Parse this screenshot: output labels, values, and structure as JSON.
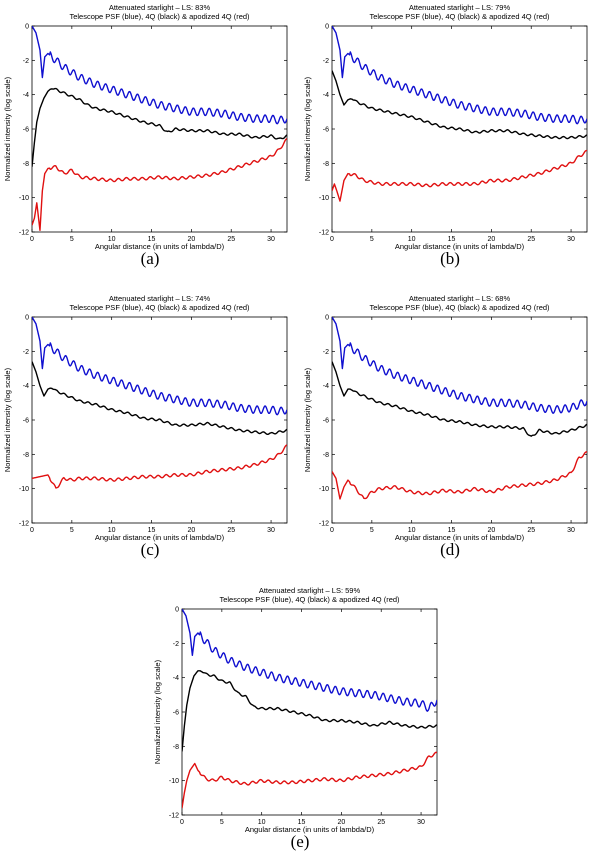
{
  "figure": {
    "title_line2": "Telescope PSF (blue), 4Q (black) & apodized 4Q (red)",
    "xlabel": "Angular distance (in units of lambda/D)",
    "ylabel": "Normalized intensity (log scale)",
    "xticks": [
      "0",
      "5",
      "10",
      "15",
      "20",
      "25",
      "30"
    ],
    "yticks": [
      "0",
      "-2",
      "-4",
      "-6",
      "-8",
      "-10",
      "-12"
    ],
    "colors": {
      "telescope": "#1010d0",
      "fourq": "#000000",
      "apodized": "#e01010"
    }
  },
  "chart_data": [
    {
      "type": "line",
      "title": "Attenuated starlight – LS: 83%",
      "caption": "(a)",
      "xlabel": "Angular distance (in units of lambda/D)",
      "ylabel": "Normalized intensity (log scale)",
      "xlim": [
        0,
        32
      ],
      "ylim": [
        -12,
        0
      ],
      "series": [
        {
          "name": "Telescope PSF (blue)",
          "color": "#1010d0",
          "x": [
            0,
            0.5,
            1,
            1.3,
            1.6,
            2,
            3,
            4,
            5,
            6,
            8,
            10,
            12,
            14,
            16,
            18,
            20,
            22,
            24,
            26,
            28,
            30,
            31,
            32
          ],
          "y": [
            0,
            -0.4,
            -1.4,
            -3,
            -1.8,
            -1.6,
            -2.0,
            -2.4,
            -2.7,
            -3.0,
            -3.4,
            -3.7,
            -4.0,
            -4.3,
            -4.6,
            -4.8,
            -5.0,
            -5.0,
            -5.1,
            -5.3,
            -5.4,
            -5.4,
            -5.5,
            -5.4
          ]
        },
        {
          "name": "4Q (black)",
          "color": "#000000",
          "x": [
            0,
            0.3,
            0.6,
            1,
            1.5,
            2,
            2.5,
            3,
            4,
            5,
            6,
            7,
            8,
            9,
            10,
            12,
            14,
            16,
            17,
            18,
            20,
            22,
            24,
            26,
            28,
            30,
            31,
            32
          ],
          "y": [
            -8.2,
            -6.8,
            -5.6,
            -4.8,
            -4.2,
            -3.8,
            -3.6,
            -3.7,
            -3.9,
            -4.1,
            -4.3,
            -4.6,
            -4.8,
            -4.9,
            -5.0,
            -5.3,
            -5.6,
            -5.8,
            -6.2,
            -6.0,
            -6.1,
            -6.1,
            -6.3,
            -6.3,
            -6.5,
            -6.4,
            -6.6,
            -6.4
          ]
        },
        {
          "name": "Apodized 4Q (red)",
          "color": "#e01010",
          "x": [
            0,
            0.3,
            0.6,
            1,
            1.3,
            1.6,
            2,
            3,
            4,
            5,
            6,
            8,
            10,
            12,
            14,
            16,
            18,
            20,
            22,
            24,
            26,
            28,
            30,
            31,
            32
          ],
          "y": [
            -11.6,
            -11.2,
            -10.3,
            -11.9,
            -9.6,
            -8.6,
            -8.3,
            -8.2,
            -8.6,
            -8.4,
            -8.8,
            -8.9,
            -9.0,
            -8.9,
            -8.9,
            -8.8,
            -8.9,
            -8.8,
            -8.7,
            -8.5,
            -8.2,
            -7.9,
            -7.6,
            -7.2,
            -6.6
          ]
        }
      ]
    },
    {
      "type": "line",
      "title": "Attenuated starlight – LS: 79%",
      "caption": "(b)",
      "xlabel": "Angular distance (in units of lambda/D)",
      "ylabel": "Normalized intensity (log scale)",
      "xlim": [
        0,
        32
      ],
      "ylim": [
        -12,
        0
      ],
      "series": [
        {
          "name": "Telescope PSF (blue)",
          "color": "#1010d0",
          "x": [
            0,
            0.5,
            1,
            1.3,
            1.6,
            2,
            3,
            4,
            5,
            6,
            8,
            10,
            12,
            14,
            16,
            18,
            20,
            22,
            24,
            26,
            28,
            30,
            31,
            32
          ],
          "y": [
            0,
            -0.4,
            -1.4,
            -3,
            -1.8,
            -1.6,
            -2.0,
            -2.4,
            -2.7,
            -3.0,
            -3.4,
            -3.7,
            -4.0,
            -4.3,
            -4.6,
            -4.8,
            -5.0,
            -5.0,
            -5.1,
            -5.3,
            -5.4,
            -5.4,
            -5.5,
            -5.4
          ]
        },
        {
          "name": "4Q (black)",
          "color": "#000000",
          "x": [
            0,
            0.5,
            1,
            1.5,
            2,
            2.5,
            3,
            4,
            5,
            6,
            8,
            10,
            12,
            14,
            16,
            18,
            20,
            22,
            24,
            26,
            28,
            30,
            32
          ],
          "y": [
            -2.6,
            -3.2,
            -4.0,
            -4.6,
            -4.3,
            -4.2,
            -4.4,
            -4.6,
            -4.8,
            -4.9,
            -5.1,
            -5.3,
            -5.6,
            -5.9,
            -6.0,
            -6.2,
            -6.1,
            -6.1,
            -6.3,
            -6.4,
            -6.5,
            -6.5,
            -6.4
          ]
        },
        {
          "name": "Apodized 4Q (red)",
          "color": "#e01010",
          "x": [
            0,
            0.3,
            0.6,
            1,
            1.5,
            2,
            3,
            4,
            5,
            6,
            8,
            10,
            12,
            14,
            16,
            18,
            20,
            22,
            24,
            26,
            28,
            30,
            31,
            32
          ],
          "y": [
            -9.6,
            -9.2,
            -9.6,
            -10.2,
            -9.0,
            -8.6,
            -8.7,
            -9.0,
            -9.1,
            -9.2,
            -9.2,
            -9.2,
            -9.3,
            -9.2,
            -9.2,
            -9.2,
            -9.0,
            -9.0,
            -8.8,
            -8.6,
            -8.3,
            -8.0,
            -7.6,
            -7.3
          ]
        }
      ]
    },
    {
      "type": "line",
      "title": "Attenuated starlight – LS: 74%",
      "caption": "(c)",
      "xlabel": "Angular distance (in units of lambda/D)",
      "ylabel": "Normalized intensity (log scale)",
      "xlim": [
        0,
        32
      ],
      "ylim": [
        -12,
        0
      ],
      "series": [
        {
          "name": "Telescope PSF (blue)",
          "color": "#1010d0",
          "x": [
            0,
            0.5,
            1,
            1.3,
            1.6,
            2,
            3,
            4,
            5,
            6,
            8,
            10,
            12,
            14,
            16,
            18,
            20,
            22,
            24,
            26,
            28,
            30,
            31,
            32
          ],
          "y": [
            0,
            -0.4,
            -1.4,
            -3,
            -1.8,
            -1.6,
            -2.0,
            -2.4,
            -2.7,
            -3.0,
            -3.4,
            -3.7,
            -4.0,
            -4.3,
            -4.6,
            -4.8,
            -5.0,
            -5.0,
            -5.1,
            -5.3,
            -5.4,
            -5.4,
            -5.5,
            -5.4
          ]
        },
        {
          "name": "4Q (black)",
          "color": "#000000",
          "x": [
            0,
            0.5,
            1,
            1.5,
            2,
            2.5,
            3,
            4,
            5,
            6,
            8,
            10,
            12,
            14,
            16,
            18,
            20,
            22,
            24,
            26,
            28,
            30,
            32
          ],
          "y": [
            -2.6,
            -3.2,
            -4.0,
            -4.6,
            -4.2,
            -4.1,
            -4.3,
            -4.5,
            -4.7,
            -4.9,
            -5.1,
            -5.4,
            -5.6,
            -5.9,
            -6.0,
            -6.3,
            -6.3,
            -6.2,
            -6.4,
            -6.6,
            -6.7,
            -6.8,
            -6.6
          ]
        },
        {
          "name": "Apodized 4Q (red)",
          "color": "#e01010",
          "x": [
            0,
            1,
            2,
            2.5,
            3,
            4,
            5,
            6,
            8,
            10,
            12,
            14,
            16,
            18,
            20,
            22,
            24,
            26,
            28,
            30,
            31,
            32
          ],
          "y": [
            -9.4,
            -9.3,
            -9.2,
            -9.6,
            -10.0,
            -9.4,
            -9.5,
            -9.4,
            -9.4,
            -9.5,
            -9.4,
            -9.3,
            -9.3,
            -9.2,
            -9.2,
            -9.0,
            -8.9,
            -8.8,
            -8.6,
            -8.3,
            -8.0,
            -7.5
          ]
        }
      ]
    },
    {
      "type": "line",
      "title": "Attenuated starlight – LS: 68%",
      "caption": "(d)",
      "xlabel": "Angular distance (in units of lambda/D)",
      "ylabel": "Normalized intensity (log scale)",
      "xlim": [
        0,
        32
      ],
      "ylim": [
        -12,
        0
      ],
      "series": [
        {
          "name": "Telescope PSF (blue)",
          "color": "#1010d0",
          "x": [
            0,
            0.5,
            1,
            1.3,
            1.6,
            2,
            3,
            4,
            5,
            6,
            8,
            10,
            12,
            14,
            16,
            18,
            20,
            22,
            24,
            26,
            28,
            30,
            31,
            32
          ],
          "y": [
            0,
            -0.4,
            -1.4,
            -3,
            -1.8,
            -1.6,
            -2.0,
            -2.4,
            -2.7,
            -3.0,
            -3.4,
            -3.7,
            -4.0,
            -4.3,
            -4.6,
            -4.8,
            -5.0,
            -5.0,
            -5.1,
            -5.3,
            -5.4,
            -5.3,
            -5.1,
            -4.9
          ]
        },
        {
          "name": "4Q (black)",
          "color": "#000000",
          "x": [
            0,
            0.5,
            1,
            1.5,
            2,
            2.5,
            3,
            4,
            5,
            6,
            8,
            10,
            12,
            14,
            16,
            18,
            20,
            22,
            24,
            25,
            26,
            28,
            30,
            32
          ],
          "y": [
            -2.6,
            -3.2,
            -4.0,
            -4.6,
            -4.2,
            -4.2,
            -4.4,
            -4.6,
            -4.8,
            -5.0,
            -5.2,
            -5.5,
            -5.7,
            -6.0,
            -6.1,
            -6.3,
            -6.4,
            -6.4,
            -6.5,
            -7.0,
            -6.6,
            -6.8,
            -6.6,
            -6.3
          ]
        },
        {
          "name": "Apodized 4Q (red)",
          "color": "#e01010",
          "x": [
            0,
            0.5,
            1,
            1.5,
            2,
            3,
            4,
            5,
            6,
            8,
            10,
            12,
            14,
            16,
            18,
            20,
            22,
            24,
            26,
            28,
            30,
            31,
            32
          ],
          "y": [
            -9.0,
            -9.4,
            -10.6,
            -9.9,
            -9.5,
            -10.0,
            -10.6,
            -10.2,
            -10.0,
            -9.9,
            -10.2,
            -10.3,
            -10.1,
            -10.2,
            -10.0,
            -10.2,
            -9.9,
            -9.8,
            -9.7,
            -9.5,
            -9.1,
            -8.2,
            -7.9
          ]
        }
      ]
    },
    {
      "type": "line",
      "title": "Attenuated starlight – LS: 59%",
      "caption": "(e)",
      "xlabel": "Angular distance (in units of lambda/D)",
      "ylabel": "Normalized intensity (log scale)",
      "xlim": [
        0,
        32
      ],
      "ylim": [
        -12,
        0
      ],
      "series": [
        {
          "name": "Telescope PSF (blue)",
          "color": "#1010d0",
          "x": [
            0,
            0.5,
            1,
            1.3,
            1.6,
            2,
            3,
            4,
            5,
            6,
            8,
            10,
            12,
            14,
            16,
            18,
            20,
            22,
            24,
            26,
            28,
            30,
            31,
            32
          ],
          "y": [
            0,
            -0.4,
            -1.4,
            -2.7,
            -1.6,
            -1.4,
            -1.9,
            -2.4,
            -2.7,
            -3.0,
            -3.4,
            -3.7,
            -4.0,
            -4.2,
            -4.4,
            -4.6,
            -4.8,
            -4.9,
            -5.0,
            -5.2,
            -5.4,
            -5.5,
            -5.8,
            -5.3
          ]
        },
        {
          "name": "4Q (black)",
          "color": "#000000",
          "x": [
            0,
            0.3,
            0.6,
            1,
            1.5,
            2,
            2.5,
            3,
            4,
            5,
            6,
            7,
            8,
            9,
            10,
            12,
            14,
            16,
            18,
            20,
            22,
            24,
            26,
            28,
            30,
            32
          ],
          "y": [
            -8.3,
            -6.8,
            -5.6,
            -4.6,
            -3.9,
            -3.6,
            -3.6,
            -3.8,
            -3.9,
            -4.2,
            -4.3,
            -4.9,
            -5.1,
            -5.7,
            -5.8,
            -5.8,
            -6.0,
            -6.2,
            -6.5,
            -6.5,
            -6.6,
            -6.8,
            -6.6,
            -6.8,
            -6.9,
            -6.8
          ]
        },
        {
          "name": "Apodized 4Q (red)",
          "color": "#e01010",
          "x": [
            0,
            0.3,
            0.6,
            1,
            1.3,
            1.6,
            2,
            3,
            4,
            5,
            6,
            8,
            10,
            12,
            14,
            16,
            18,
            20,
            22,
            24,
            26,
            28,
            30,
            31,
            32
          ],
          "y": [
            -11.6,
            -10.7,
            -10.0,
            -9.4,
            -9.2,
            -9.0,
            -9.4,
            -9.9,
            -10.0,
            -9.8,
            -10.0,
            -10.2,
            -10.0,
            -10.1,
            -10.1,
            -10.0,
            -9.9,
            -10.0,
            -9.8,
            -9.7,
            -9.6,
            -9.4,
            -9.2,
            -8.6,
            -8.4
          ]
        }
      ]
    }
  ]
}
